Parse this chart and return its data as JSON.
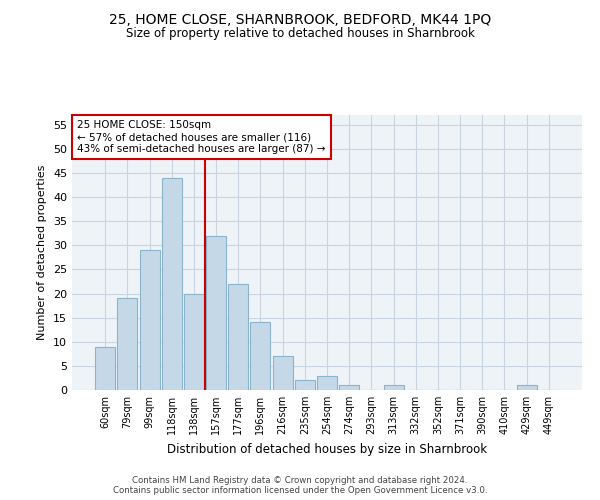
{
  "title": "25, HOME CLOSE, SHARNBROOK, BEDFORD, MK44 1PQ",
  "subtitle": "Size of property relative to detached houses in Sharnbrook",
  "xlabel": "Distribution of detached houses by size in Sharnbrook",
  "ylabel": "Number of detached properties",
  "bar_labels": [
    "60sqm",
    "79sqm",
    "99sqm",
    "118sqm",
    "138sqm",
    "157sqm",
    "177sqm",
    "196sqm",
    "216sqm",
    "235sqm",
    "254sqm",
    "274sqm",
    "293sqm",
    "313sqm",
    "332sqm",
    "352sqm",
    "371sqm",
    "390sqm",
    "410sqm",
    "429sqm",
    "449sqm"
  ],
  "bar_values": [
    9,
    19,
    29,
    44,
    20,
    32,
    22,
    14,
    7,
    2,
    3,
    1,
    0,
    1,
    0,
    0,
    0,
    0,
    0,
    1,
    0
  ],
  "bar_color": "#c5d8e8",
  "bar_edge_color": "#8ab4cc",
  "grid_color": "#c8d4e0",
  "background_color": "#eef3f8",
  "vline_x": 4.5,
  "vline_color": "#cc0000",
  "annotation_text": "25 HOME CLOSE: 150sqm\n← 57% of detached houses are smaller (116)\n43% of semi-detached houses are larger (87) →",
  "annotation_box_color": "#ffffff",
  "annotation_box_edge": "#cc0000",
  "ylim": [
    0,
    57
  ],
  "yticks": [
    0,
    5,
    10,
    15,
    20,
    25,
    30,
    35,
    40,
    45,
    50,
    55
  ],
  "footer_line1": "Contains HM Land Registry data © Crown copyright and database right 2024.",
  "footer_line2": "Contains public sector information licensed under the Open Government Licence v3.0."
}
